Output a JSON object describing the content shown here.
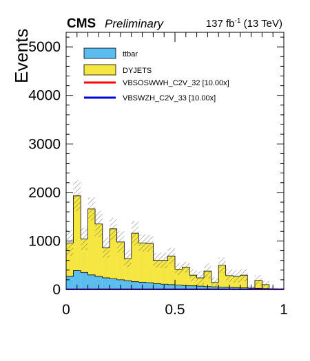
{
  "header": {
    "cms_label": "CMS",
    "prelim_label": "Preliminary",
    "lumi_value": "137 fb",
    "lumi_exponent": "-1",
    "lumi_energy": " (13 TeV)"
  },
  "chart_data": {
    "type": "bar",
    "stacked": true,
    "ylabel": "Events",
    "xlabel": "",
    "xlim": [
      0,
      1
    ],
    "ylim": [
      0,
      5300
    ],
    "x_ticks": [
      "0",
      "0.5",
      "1"
    ],
    "x_tick_values": [
      0,
      0.5,
      1
    ],
    "y_ticks": [
      "0",
      "1000",
      "2000",
      "3000",
      "4000",
      "5000"
    ],
    "y_tick_values": [
      0,
      1000,
      2000,
      3000,
      4000,
      5000
    ],
    "bin_edges": [
      0,
      0.033,
      0.067,
      0.1,
      0.133,
      0.167,
      0.2,
      0.233,
      0.267,
      0.3,
      0.333,
      0.367,
      0.4,
      0.433,
      0.467,
      0.5,
      0.533,
      0.567,
      0.6,
      0.633,
      0.667,
      0.7,
      0.733,
      0.767,
      0.8,
      0.833,
      0.867,
      0.9,
      0.933,
      0.967,
      1.0
    ],
    "series": [
      {
        "name": "ttbar",
        "color": "#5bbcf0",
        "values": [
          270,
          390,
          350,
          300,
          270,
          240,
          220,
          200,
          180,
          160,
          150,
          140,
          120,
          110,
          100,
          90,
          80,
          75,
          70,
          60,
          55,
          50,
          45,
          40,
          35,
          30,
          25,
          20,
          15,
          10
        ]
      },
      {
        "name": "DYJETS",
        "color": "#f5e642",
        "values": [
          690,
          1540,
          690,
          1360,
          1080,
          620,
          1030,
          780,
          460,
          1000,
          810,
          810,
          480,
          490,
          590,
          330,
          380,
          220,
          170,
          320,
          90,
          450,
          240,
          230,
          260,
          0,
          165,
          80,
          0,
          0
        ]
      },
      {
        "name": "VBSOSWWH_C2V_32 [10.00x]",
        "color": "#ff0000",
        "values": [
          3,
          3,
          3,
          3,
          3,
          3,
          3,
          3,
          3,
          3,
          3,
          3,
          3,
          3,
          3,
          3,
          3,
          3,
          3,
          3,
          3,
          3,
          3,
          3,
          3,
          3,
          3,
          3,
          3,
          3
        ]
      },
      {
        "name": "VBSWZH_C2V_33 [10.00x]",
        "color": "#0000dd",
        "values": [
          4,
          4,
          4,
          4,
          4,
          4,
          4,
          4,
          4,
          4,
          4,
          4,
          4,
          4,
          4,
          4,
          4,
          4,
          4,
          4,
          4,
          4,
          4,
          4,
          4,
          4,
          4,
          4,
          4,
          4
        ]
      }
    ],
    "uncertainty_hi": [
      1230,
      2250,
      1270,
      1900,
      1620,
      1070,
      1480,
      1200,
      820,
      1410,
      1140,
      1120,
      750,
      760,
      860,
      540,
      570,
      420,
      380,
      540,
      250,
      660,
      420,
      400,
      420,
      80,
      300,
      180,
      60,
      30
    ],
    "legend_position": "top-left",
    "grid": false
  }
}
